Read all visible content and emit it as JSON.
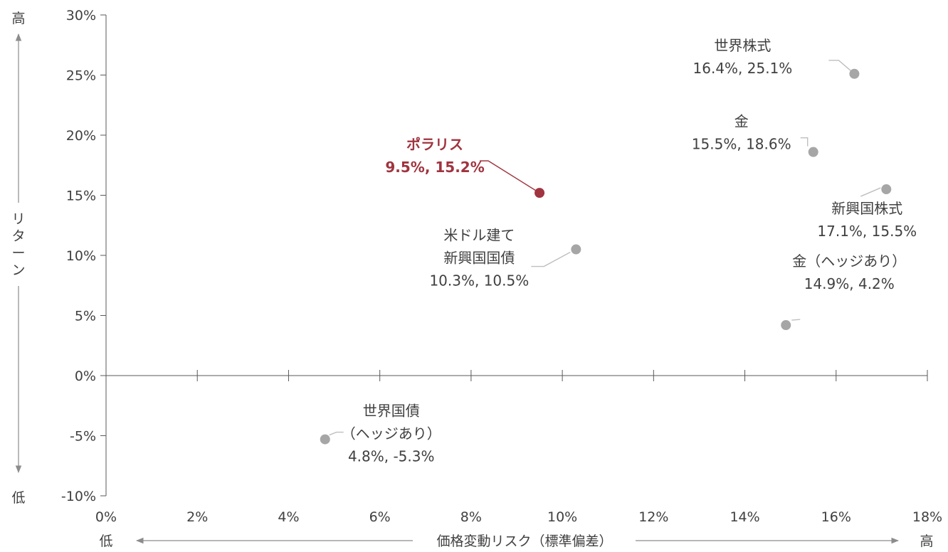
{
  "chart_data": {
    "type": "scatter",
    "xlabel": "価格変動リスク（標準偏差）",
    "ylabel": "リターン",
    "x_low_label": "低",
    "x_high_label": "高",
    "y_low_label": "低",
    "y_high_label": "高",
    "xlim": [
      0,
      18
    ],
    "ylim": [
      -10,
      30
    ],
    "xticks": [
      0,
      2,
      4,
      6,
      8,
      10,
      12,
      14,
      16,
      18
    ],
    "yticks": [
      -10,
      -5,
      0,
      5,
      10,
      15,
      20,
      25,
      30
    ],
    "x_tick_labels": [
      "0%",
      "2%",
      "4%",
      "6%",
      "8%",
      "10%",
      "12%",
      "14%",
      "16%",
      "18%"
    ],
    "y_tick_labels": [
      "-10%",
      "-5%",
      "0%",
      "5%",
      "10%",
      "15%",
      "20%",
      "25%",
      "30%"
    ],
    "colors": {
      "highlight": "#a0343f",
      "point": "#a6a6a6",
      "axis": "#595959",
      "text": "#404040"
    },
    "points": [
      {
        "label": [
          "世界株式"
        ],
        "value_label": "16.4%, 25.1%",
        "x": 16.4,
        "y": 25.1,
        "highlight": false
      },
      {
        "label": [
          "金"
        ],
        "value_label": "15.5%, 18.6%",
        "x": 15.5,
        "y": 18.6,
        "highlight": false
      },
      {
        "label": [
          "ポラリス"
        ],
        "value_label": "9.5%, 15.2%",
        "x": 9.5,
        "y": 15.2,
        "highlight": true
      },
      {
        "label": [
          "新興国株式"
        ],
        "value_label": "17.1%, 15.5%",
        "x": 17.1,
        "y": 15.5,
        "highlight": false
      },
      {
        "label": [
          "米ドル建て",
          "新興国国債"
        ],
        "value_label": "10.3%, 10.5%",
        "x": 10.3,
        "y": 10.5,
        "highlight": false
      },
      {
        "label": [
          "金（ヘッジあり）"
        ],
        "value_label": "14.9%, 4.2%",
        "x": 14.9,
        "y": 4.2,
        "highlight": false
      },
      {
        "label": [
          "世界国債",
          "（ヘッジあり）"
        ],
        "value_label": "4.8%, -5.3%",
        "x": 4.8,
        "y": -5.3,
        "highlight": false
      }
    ]
  }
}
